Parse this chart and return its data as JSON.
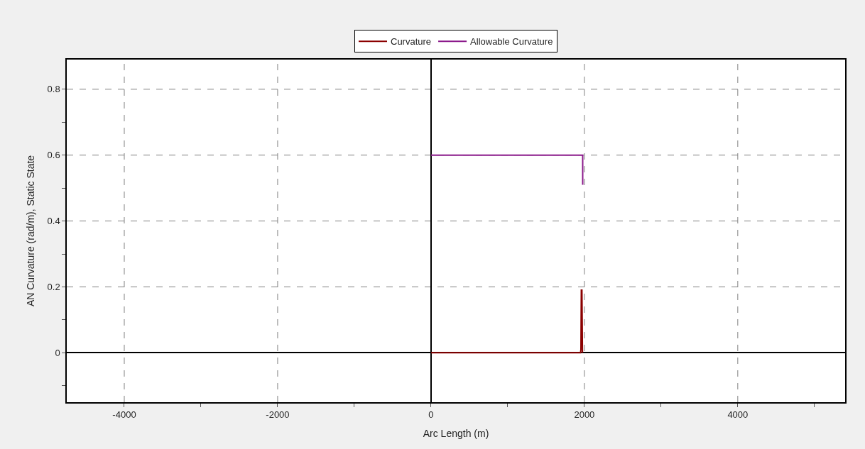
{
  "chart_data": {
    "type": "line",
    "xlabel": "Arc Length (m)",
    "ylabel": "AN Curvature (rad/m), Static State",
    "series": [
      {
        "name": "Curvature",
        "color": "#8b0000",
        "x": [
          0,
          1950,
          1955,
          1960,
          1968,
          1975
        ],
        "values": [
          0,
          0,
          0.01,
          0.19,
          0.19,
          0
        ]
      },
      {
        "name": "Allowable Curvature",
        "color": "#8b1a8b",
        "x": [
          0,
          1978,
          1978
        ],
        "values": [
          0.6,
          0.6,
          0.51
        ]
      }
    ],
    "xlim": [
      -4750,
      5400
    ],
    "ylim": [
      -0.15,
      0.89
    ],
    "xticks": [
      -4000,
      {
        "value": -3000,
        "label": null
      },
      -2000,
      {
        "value": -1000,
        "label": null
      },
      0,
      {
        "value": 1000,
        "label": null
      },
      2000,
      {
        "value": 3000,
        "label": null
      },
      4000,
      {
        "value": 5000,
        "label": null
      }
    ],
    "yticks": [
      {
        "value": -0.1,
        "label": null
      },
      0,
      {
        "value": 0.1,
        "label": null
      },
      0.2,
      {
        "value": 0.3,
        "label": null
      },
      0.4,
      {
        "value": 0.5,
        "label": null
      },
      0.6,
      {
        "value": 0.7,
        "label": null
      },
      0.8
    ],
    "grid": true,
    "legend": "top",
    "marker": "none",
    "line_style": "solid"
  }
}
